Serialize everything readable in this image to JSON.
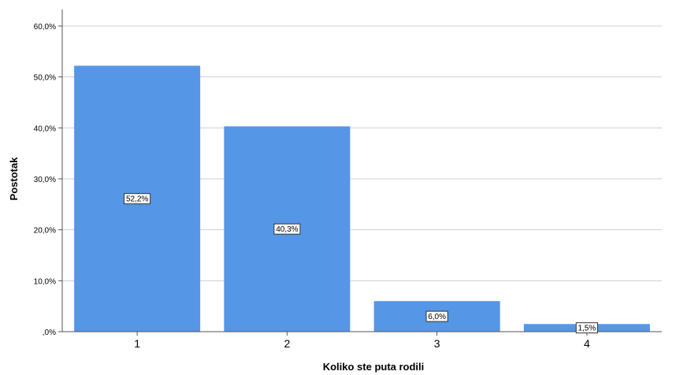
{
  "chart_data": {
    "type": "bar",
    "categories": [
      "1",
      "2",
      "3",
      "4"
    ],
    "values": [
      52.2,
      40.3,
      6.0,
      1.5
    ],
    "data_labels": [
      "52,2%",
      "40,3%",
      "6,0%",
      "1,5%"
    ],
    "xlabel": "Koliko ste puta rodili",
    "ylabel": "Postotak",
    "ylim": [
      0,
      60
    ],
    "yticks": [
      0,
      10,
      20,
      30,
      40,
      50,
      60
    ],
    "ytick_labels": [
      ",0%",
      "10,0%",
      "20,0%",
      "30,0%",
      "40,0%",
      "50,0%",
      "60,0%"
    ],
    "grid": true,
    "bar_color": "#5596e6"
  }
}
